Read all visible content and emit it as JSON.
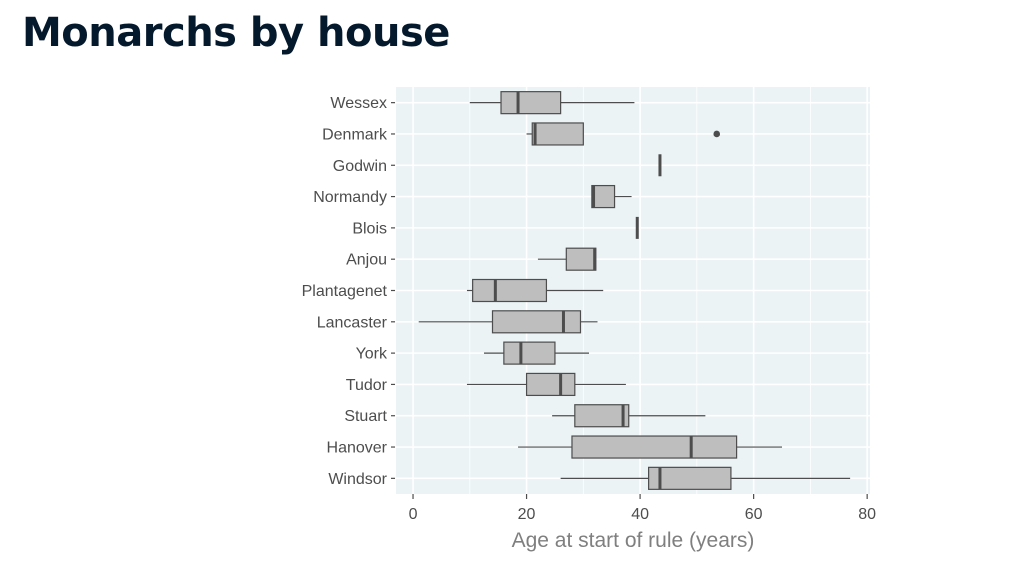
{
  "title": "Monarchs by house",
  "colors": {
    "title": "#05192d",
    "panel_background": "#ebf3f5",
    "grid": "#ffffff",
    "box_fill": "#bebebe",
    "box_stroke": "#4d4d4d",
    "axis_text": "#4d4d4d",
    "axis_title": "#7f7f7f"
  },
  "chart_data": {
    "type": "boxplot",
    "orientation": "horizontal",
    "xlabel": "Age at start of rule (years)",
    "ylabel": "",
    "xlim": [
      -3,
      80.5
    ],
    "x_ticks": [
      0,
      20,
      40,
      60,
      80
    ],
    "grid": true,
    "legend": "none",
    "categories": [
      "Wessex",
      "Denmark",
      "Godwin",
      "Normandy",
      "Blois",
      "Anjou",
      "Plantagenet",
      "Lancaster",
      "York",
      "Tudor",
      "Stuart",
      "Hanover",
      "Windsor"
    ],
    "boxes": [
      {
        "category": "Wessex",
        "whisker_low": 10,
        "q1": 15.5,
        "median": 18.5,
        "q3": 26,
        "whisker_high": 39,
        "outliers": []
      },
      {
        "category": "Denmark",
        "whisker_low": 20,
        "q1": 21,
        "median": 21.5,
        "q3": 30,
        "whisker_high": 30,
        "outliers": [
          53.5
        ]
      },
      {
        "category": "Godwin",
        "whisker_low": 43.5,
        "q1": 43.5,
        "median": 43.5,
        "q3": 43.5,
        "whisker_high": 43.5,
        "outliers": []
      },
      {
        "category": "Normandy",
        "whisker_low": 31.5,
        "q1": 31.5,
        "median": 31.8,
        "q3": 35.5,
        "whisker_high": 38.5,
        "outliers": []
      },
      {
        "category": "Blois",
        "whisker_low": 39.5,
        "q1": 39.5,
        "median": 39.5,
        "q3": 39.5,
        "whisker_high": 39.5,
        "outliers": []
      },
      {
        "category": "Anjou",
        "whisker_low": 22,
        "q1": 27,
        "median": 32,
        "q3": 32.2,
        "whisker_high": 32.2,
        "outliers": []
      },
      {
        "category": "Plantagenet",
        "whisker_low": 9.5,
        "q1": 10.5,
        "median": 14.5,
        "q3": 23.5,
        "whisker_high": 33.5,
        "outliers": []
      },
      {
        "category": "Lancaster",
        "whisker_low": 1,
        "q1": 14,
        "median": 26.5,
        "q3": 29.5,
        "whisker_high": 32.5,
        "outliers": []
      },
      {
        "category": "York",
        "whisker_low": 12.5,
        "q1": 16,
        "median": 19,
        "q3": 25,
        "whisker_high": 31,
        "outliers": []
      },
      {
        "category": "Tudor",
        "whisker_low": 9.5,
        "q1": 20,
        "median": 26,
        "q3": 28.5,
        "whisker_high": 37.5,
        "outliers": []
      },
      {
        "category": "Stuart",
        "whisker_low": 24.5,
        "q1": 28.5,
        "median": 37,
        "q3": 38,
        "whisker_high": 51.5,
        "outliers": []
      },
      {
        "category": "Hanover",
        "whisker_low": 18.5,
        "q1": 28,
        "median": 49,
        "q3": 57,
        "whisker_high": 65,
        "outliers": []
      },
      {
        "category": "Windsor",
        "whisker_low": 26,
        "q1": 41.5,
        "median": 43.5,
        "q3": 56,
        "whisker_high": 77,
        "outliers": []
      }
    ]
  }
}
